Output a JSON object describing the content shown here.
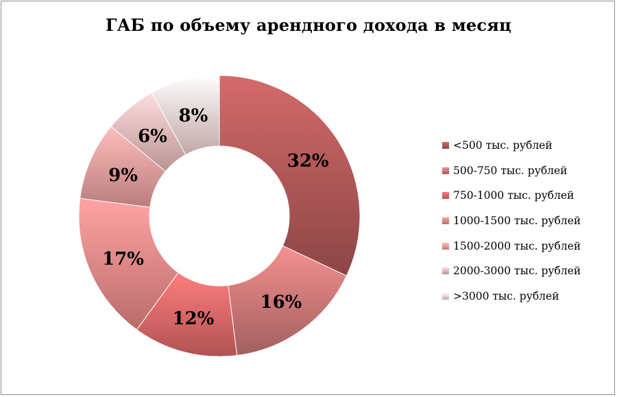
{
  "chart_data": {
    "type": "pie",
    "subtype": "donut",
    "title": "ГАБ по объему арендного дохода в месяц",
    "legend_position": "right",
    "slices": [
      {
        "label": "<500 тыс. рублей",
        "value": 32,
        "display": "32%",
        "color": "#b45a5a"
      },
      {
        "label": "500-750 тыс. рублей",
        "value": 16,
        "display": "16%",
        "color": "#d07a7a"
      },
      {
        "label": "750-1000 тыс. рублей",
        "value": 12,
        "display": "12%",
        "color": "#e26a6a"
      },
      {
        "label": "1000-1500 тыс. рублей",
        "value": 17,
        "display": "17%",
        "color": "#ee8a8a"
      },
      {
        "label": "1500-2000 тыс. рублей",
        "value": 9,
        "display": "9%",
        "color": "#eda0a0"
      },
      {
        "label": "2000-3000 тыс. рублей",
        "value": 6,
        "display": "6%",
        "color": "#efbcbc"
      },
      {
        "label": ">3000 тыс. рублей",
        "value": 8,
        "display": "8%",
        "color": "#f6d6d6"
      }
    ]
  }
}
